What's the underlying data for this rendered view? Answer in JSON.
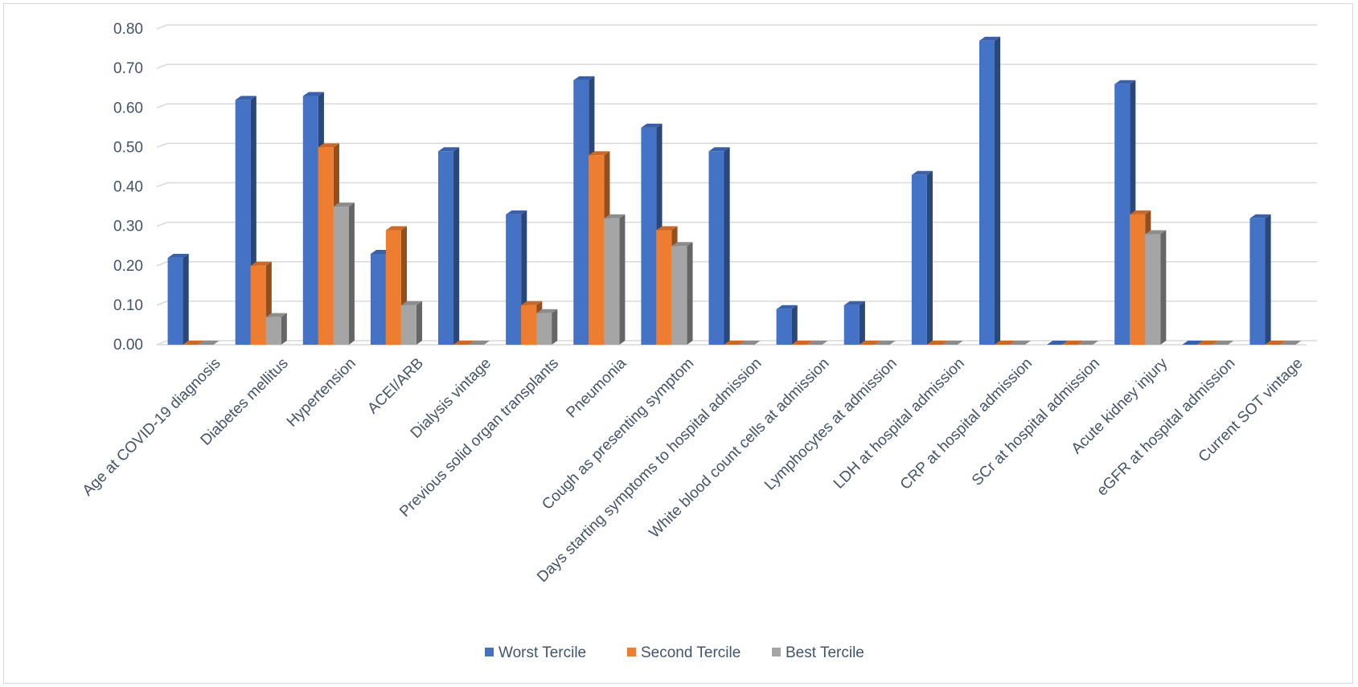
{
  "chart_data": {
    "type": "bar",
    "title": "",
    "xlabel": "",
    "ylabel": "",
    "ylim": [
      0,
      0.8
    ],
    "ytick_labels": [
      "0.00",
      "0.10",
      "0.20",
      "0.30",
      "0.40",
      "0.50",
      "0.60",
      "0.70",
      "0.80"
    ],
    "grid": true,
    "legend_position": "bottom",
    "categories": [
      "Age at COVID-19 diagnosis",
      "Diabetes mellitus",
      "Hypertension",
      "ACEI/ARB",
      "Dialysis vintage",
      "Previous solid organ transplants",
      "Pneumonia",
      "Cough as presenting symptom",
      "Days starting symptoms to hospital admission",
      "White blood count cells at admission",
      "Lymphocytes at admission",
      "LDH at hospital admission",
      "CRP at hospital admission",
      "SCr at hospital admission",
      "Acute kidney injury",
      "eGFR at hospital admission",
      "Current SOT vintage"
    ],
    "series": [
      {
        "name": "Worst Tercile",
        "color": "#4472c4",
        "values": [
          0.22,
          0.62,
          0.63,
          0.23,
          0.49,
          0.33,
          0.67,
          0.55,
          0.49,
          0.09,
          0.1,
          0.43,
          0.77,
          0.0,
          0.66,
          0.0,
          0.32
        ]
      },
      {
        "name": "Second Tercile",
        "color": "#ed7d31",
        "values": [
          0.0,
          0.2,
          0.5,
          0.29,
          0.0,
          0.1,
          0.48,
          0.29,
          0.0,
          0.0,
          0.0,
          0.0,
          0.0,
          0.0,
          0.33,
          0.0,
          0.0
        ]
      },
      {
        "name": "Best Tercile",
        "color": "#a5a5a5",
        "values": [
          0.0,
          0.07,
          0.35,
          0.1,
          0.0,
          0.08,
          0.32,
          0.25,
          0.0,
          0.0,
          0.0,
          0.0,
          0.0,
          0.0,
          0.28,
          0.0,
          0.0
        ]
      }
    ]
  }
}
